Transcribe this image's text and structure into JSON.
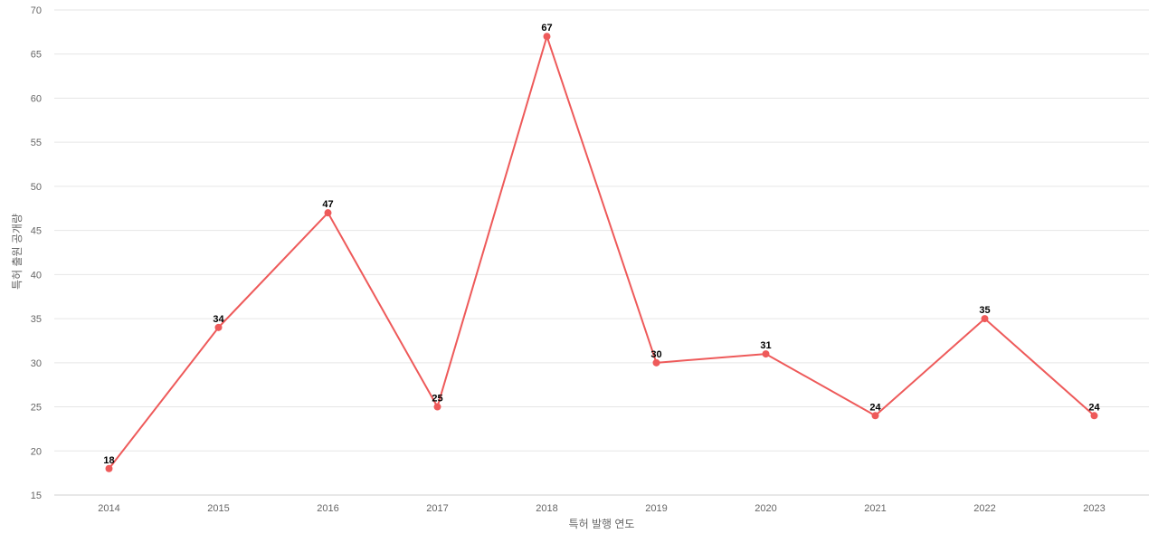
{
  "chart_data": {
    "type": "line",
    "title": "",
    "xlabel": "특허 발행 연도",
    "ylabel": "특허 출원 공개량",
    "categories": [
      "2014",
      "2015",
      "2016",
      "2017",
      "2018",
      "2019",
      "2020",
      "2021",
      "2022",
      "2023"
    ],
    "series": [
      {
        "values": [
          18,
          34,
          47,
          25,
          67,
          30,
          31,
          24,
          35,
          24
        ],
        "color": "#ee5a5a"
      }
    ],
    "ylim": [
      15,
      70
    ],
    "yticks": [
      15,
      20,
      25,
      30,
      35,
      40,
      45,
      50,
      55,
      60,
      65,
      70
    ],
    "grid": true,
    "data_labels": true,
    "legend": "none"
  }
}
